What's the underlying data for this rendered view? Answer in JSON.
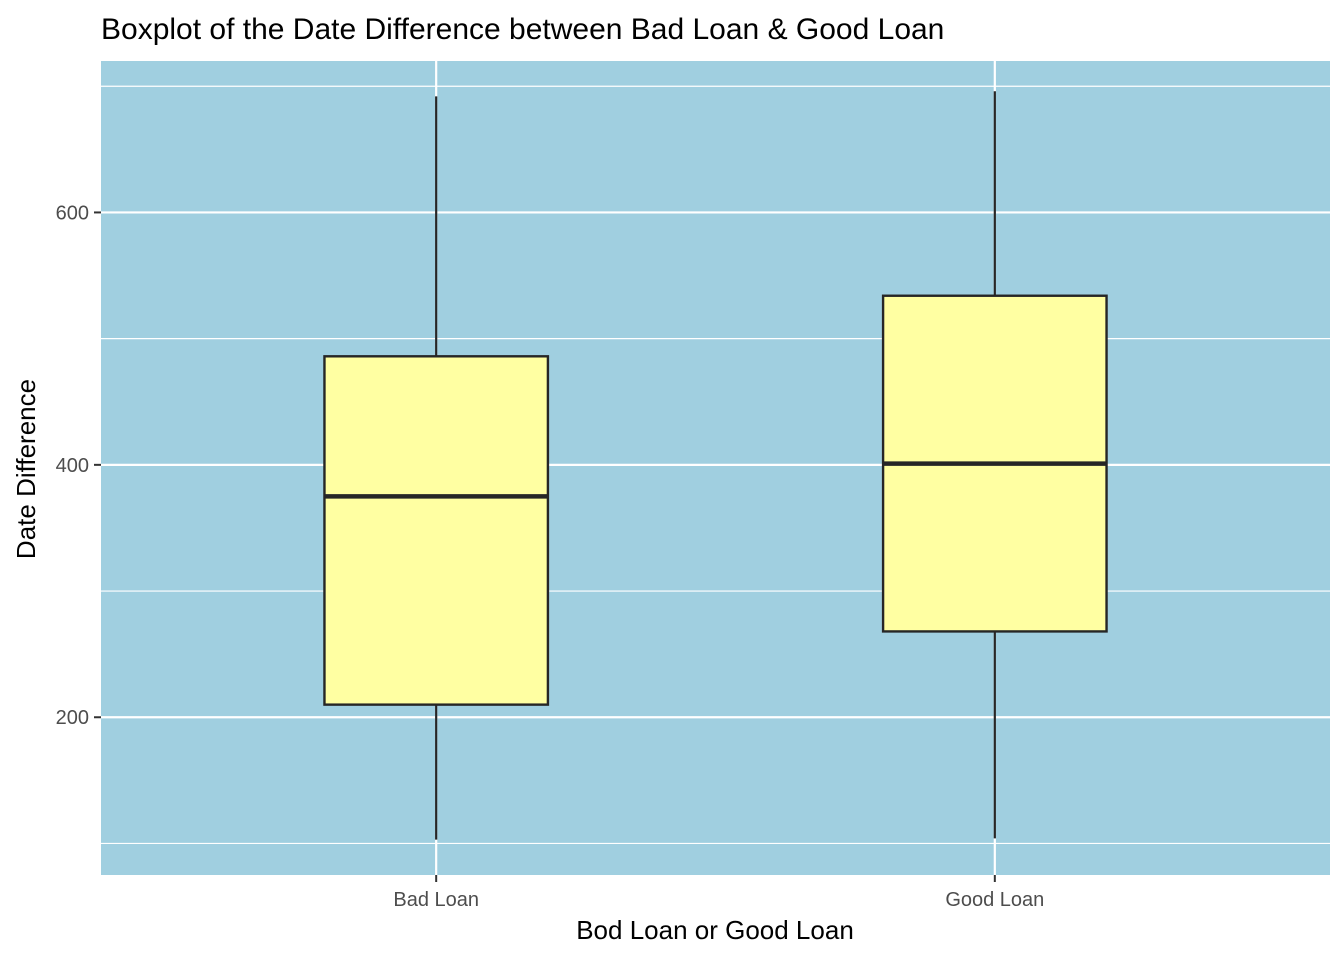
{
  "chart_data": {
    "type": "boxplot",
    "title": "Boxplot of the Date Difference between Bad Loan & Good Loan",
    "xlabel": "Bod Loan or Good Loan",
    "ylabel": "Date Difference",
    "categories": [
      "Bad Loan",
      "Good Loan"
    ],
    "boxes": [
      {
        "category": "Bad Loan",
        "min": 103,
        "q1": 210,
        "median": 375,
        "q3": 486,
        "max": 692
      },
      {
        "category": "Good Loan",
        "min": 104,
        "q1": 268,
        "median": 401,
        "q3": 534,
        "max": 696
      }
    ],
    "yticks": [
      200,
      400,
      600
    ],
    "ylim": [
      75,
      720
    ],
    "grid": true,
    "colors": {
      "panel_background": "#a0cfe0",
      "gridline": "#ffffff",
      "box_fill": "#ffffa2",
      "box_stroke": "#262626",
      "tick_mark": "#333333"
    }
  }
}
